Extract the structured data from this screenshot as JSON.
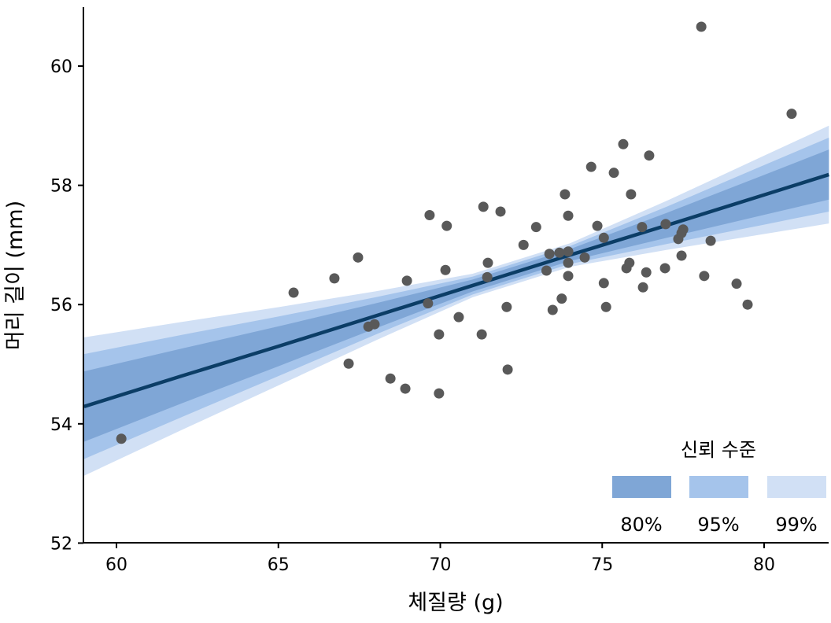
{
  "chart_data": {
    "type": "scatter",
    "xlabel": "체질량 (g)",
    "ylabel": "머리 길이 (mm)",
    "xlim": [
      59,
      82
    ],
    "ylim": [
      52,
      61
    ],
    "xticks": [
      60,
      65,
      70,
      75,
      80
    ],
    "yticks": [
      52,
      54,
      56,
      58,
      60
    ],
    "grid": false,
    "colors": {
      "points": "#595959",
      "line": "#0b3d66",
      "band_80": "#7fa6d6",
      "band_95": "#a5c4eb",
      "band_99": "#d1e0f5"
    },
    "points": [
      [
        60.15,
        53.75
      ],
      [
        65.47,
        56.2
      ],
      [
        66.73,
        56.44
      ],
      [
        67.46,
        56.79
      ],
      [
        67.17,
        55.01
      ],
      [
        67.78,
        55.63
      ],
      [
        67.97,
        55.67
      ],
      [
        68.46,
        54.76
      ],
      [
        68.92,
        54.59
      ],
      [
        68.97,
        56.4
      ],
      [
        69.67,
        57.5
      ],
      [
        69.62,
        56.02
      ],
      [
        69.96,
        55.5
      ],
      [
        69.96,
        54.51
      ],
      [
        70.16,
        56.58
      ],
      [
        70.2,
        57.32
      ],
      [
        70.57,
        55.79
      ],
      [
        71.28,
        55.5
      ],
      [
        71.33,
        57.64
      ],
      [
        71.47,
        56.7
      ],
      [
        71.45,
        56.46
      ],
      [
        71.86,
        57.56
      ],
      [
        72.05,
        55.96
      ],
      [
        72.08,
        54.91
      ],
      [
        72.57,
        57.0
      ],
      [
        72.96,
        57.3
      ],
      [
        73.28,
        56.57
      ],
      [
        73.37,
        56.85
      ],
      [
        73.47,
        55.91
      ],
      [
        73.68,
        56.87
      ],
      [
        73.75,
        56.1
      ],
      [
        73.85,
        57.85
      ],
      [
        73.95,
        56.89
      ],
      [
        73.95,
        57.49
      ],
      [
        73.95,
        56.7
      ],
      [
        73.95,
        56.48
      ],
      [
        74.46,
        56.79
      ],
      [
        74.66,
        58.31
      ],
      [
        74.85,
        57.32
      ],
      [
        75.05,
        57.12
      ],
      [
        75.05,
        56.36
      ],
      [
        75.12,
        55.96
      ],
      [
        75.36,
        58.21
      ],
      [
        75.65,
        58.69
      ],
      [
        75.75,
        56.61
      ],
      [
        75.84,
        56.7
      ],
      [
        75.89,
        57.85
      ],
      [
        76.23,
        57.3
      ],
      [
        76.26,
        56.29
      ],
      [
        76.36,
        56.54
      ],
      [
        76.45,
        58.5
      ],
      [
        76.94,
        56.61
      ],
      [
        76.96,
        57.35
      ],
      [
        77.35,
        57.1
      ],
      [
        77.45,
        56.82
      ],
      [
        77.5,
        57.26
      ],
      [
        77.45,
        57.2
      ],
      [
        78.06,
        60.66
      ],
      [
        78.15,
        56.48
      ],
      [
        78.35,
        57.07
      ],
      [
        79.15,
        56.35
      ],
      [
        79.49,
        56.0
      ],
      [
        80.85,
        59.2
      ]
    ],
    "fit": {
      "x": [
        59,
        62,
        65,
        68,
        71,
        74,
        77,
        80,
        82
      ],
      "y": [
        54.29,
        54.8,
        55.3,
        55.81,
        56.32,
        56.83,
        57.33,
        57.84,
        58.18
      ],
      "half_width_99": [
        1.16,
        0.907,
        0.657,
        0.412,
        0.197,
        0.197,
        0.412,
        0.657,
        0.82
      ],
      "half_width_95": [
        0.88,
        0.69,
        0.5,
        0.313,
        0.15,
        0.15,
        0.313,
        0.5,
        0.62
      ],
      "half_width_80": [
        0.59,
        0.46,
        0.335,
        0.21,
        0.1,
        0.1,
        0.21,
        0.335,
        0.42
      ]
    },
    "legend": {
      "title": "신뢰 수준",
      "placement": "bottom-right",
      "entries": [
        "80%",
        "95%",
        "99%"
      ]
    }
  }
}
